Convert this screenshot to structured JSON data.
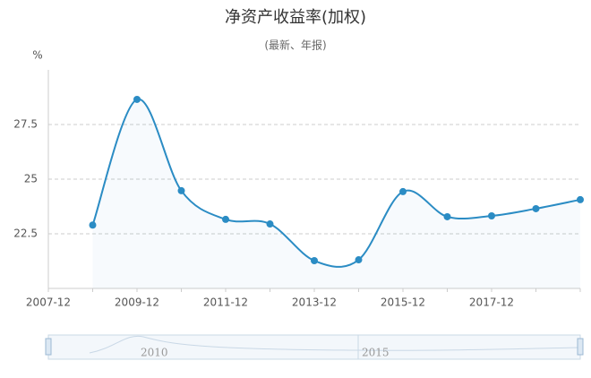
{
  "chart_data": {
    "type": "line",
    "title": "净资产收益率(加权)",
    "subtitle": "(最新、年报)",
    "y_unit": "%",
    "categories": [
      "2007-12",
      null,
      "2009-12",
      null,
      "2011-12",
      null,
      "2013-12",
      null,
      "2015-12",
      null,
      "2017-12",
      null,
      null
    ],
    "series": [
      {
        "name": "净资产收益率(加权)",
        "color": "#2b8cc4",
        "values": [
          null,
          22.9,
          28.65,
          24.47,
          23.16,
          22.95,
          21.27,
          21.31,
          24.43,
          23.28,
          23.32,
          23.65,
          24.06
        ]
      }
    ],
    "ylim": [
      20,
      30
    ],
    "yticks": [
      22.5,
      25,
      27.5
    ],
    "grid": true,
    "data_zoom": {
      "labels": [
        "2010",
        "2015"
      ]
    }
  }
}
